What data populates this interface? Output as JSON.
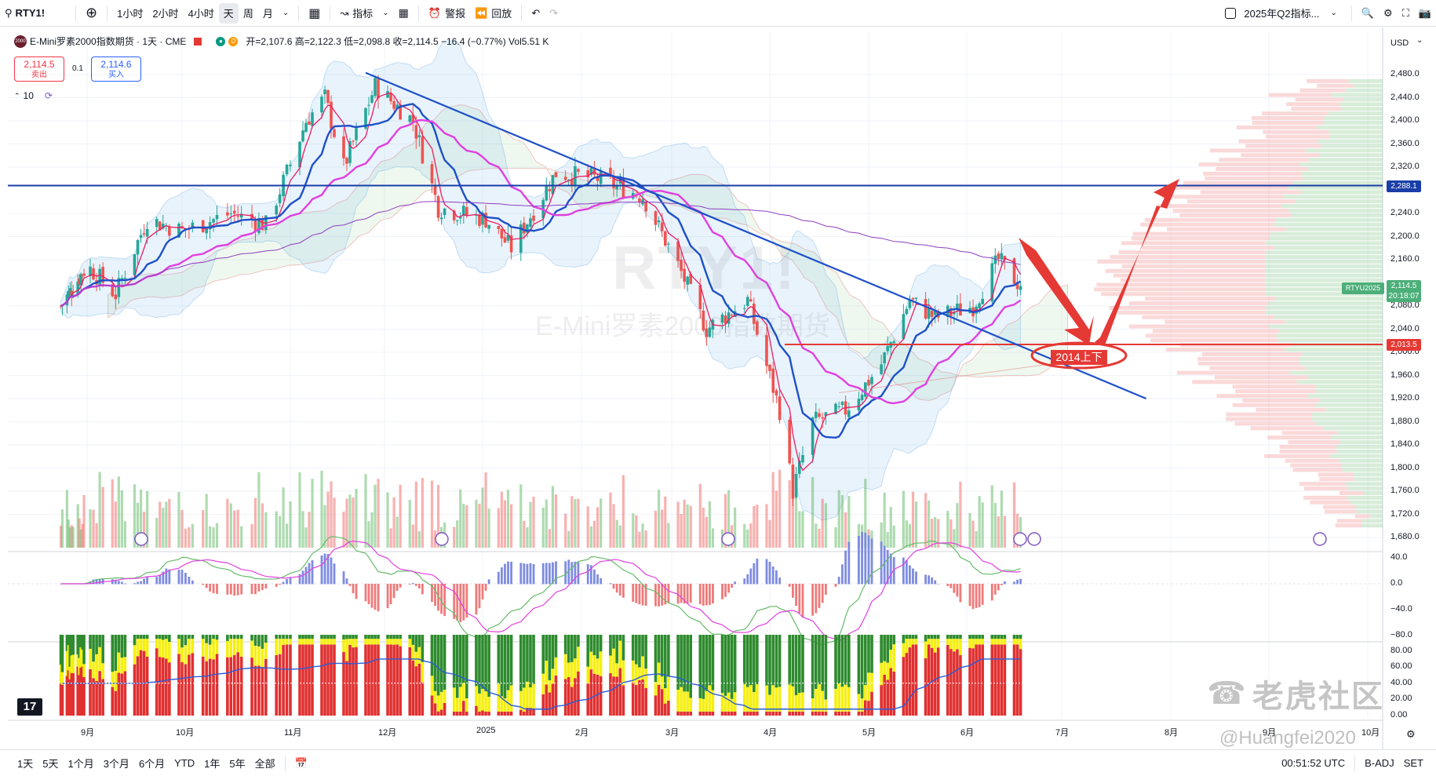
{
  "toolbar": {
    "search_symbol": "RTY1!",
    "intervals": [
      "1小时",
      "2小时",
      "4小时",
      "天",
      "周",
      "月"
    ],
    "active_interval": "天",
    "indicators_label": "指标",
    "alert_label": "警报",
    "replay_label": "回放",
    "layout_name": "2025年Q2指标..."
  },
  "legend": {
    "title": "E-Mini罗素2000指数期货 · 1天 · CME",
    "logo_text": "2000",
    "badge_d": "D",
    "ohlc": "开=2,107.6 高=2,122.3 低=2,098.8 收=2,114.5 −16.4 (−0.77%) Vol5.51 K",
    "sell_price": "2,114.5",
    "sell_label": "卖出",
    "spread": "0.1",
    "buy_price": "2,114.6",
    "buy_label": "买入",
    "indicator_count": "10"
  },
  "watermark": {
    "symbol": "RTY1!",
    "name": "E-Mini罗素2000指数期货"
  },
  "annotation": {
    "label": "2014上下"
  },
  "price_axis": {
    "currency": "USD",
    "ticks": [
      "2,480.0",
      "2,440.0",
      "2,400.0",
      "2,360.0",
      "2,320.0",
      "2,240.0",
      "2,200.0",
      "2,160.0",
      "2,080.0",
      "2,040.0",
      "2,000.0",
      "1,960.0",
      "1,920.0",
      "1,880.0",
      "1,840.0",
      "1,800.0",
      "1,760.0",
      "1,720.0",
      "1,680.0"
    ],
    "tag_resistance": "2,288.1",
    "tag_symbol": "RTYU2025",
    "tag_last": "2,114.5",
    "tag_countdown": "20:18:07",
    "tag_support": "2,013.5"
  },
  "osc_axis": {
    "ticks": [
      "40.0",
      "0.0",
      "−40.0",
      "−80.0"
    ]
  },
  "sent_axis": {
    "ticks": [
      "80.00",
      "60.00",
      "40.00",
      "20.00",
      "0.00"
    ]
  },
  "time_axis": {
    "ticks": [
      "9月",
      "10月",
      "11月",
      "12月",
      "2025",
      "2月",
      "3月",
      "4月",
      "5月",
      "6月",
      "7月",
      "8月",
      "9月",
      "10月"
    ]
  },
  "bottombar": {
    "ranges": [
      "1天",
      "5天",
      "1个月",
      "3个月",
      "6个月",
      "YTD",
      "1年",
      "5年",
      "全部"
    ],
    "clock": "00:51:52 UTC",
    "adj": "B-ADJ",
    "session": "SET"
  },
  "watermark_brand": {
    "community": "老虎社区",
    "handle": "@Huangfei2020"
  },
  "chart_data": {
    "type": "candlestick",
    "title": "E-Mini罗素2000指数期货 · 1天 · CME",
    "y_range": [
      1680,
      2500
    ],
    "last": {
      "open": 2107.6,
      "high": 2122.3,
      "low": 2098.8,
      "close": 2114.5,
      "change": -16.4,
      "change_pct": -0.77,
      "volume": "5.51K"
    },
    "levels": {
      "resistance": 2288.1,
      "support": 2013.5
    },
    "close_path": [
      {
        "x": "2024-08-15",
        "y": 2080
      },
      {
        "x": "2024-09-01",
        "y": 2150
      },
      {
        "x": "2024-09-10",
        "y": 2100
      },
      {
        "x": "2024-09-20",
        "y": 2230
      },
      {
        "x": "2024-10-01",
        "y": 2210
      },
      {
        "x": "2024-10-15",
        "y": 2240
      },
      {
        "x": "2024-10-25",
        "y": 2220
      },
      {
        "x": "2024-11-06",
        "y": 2400
      },
      {
        "x": "2024-11-12",
        "y": 2440
      },
      {
        "x": "2024-11-18",
        "y": 2320
      },
      {
        "x": "2024-11-28",
        "y": 2460
      },
      {
        "x": "2024-12-10",
        "y": 2400
      },
      {
        "x": "2024-12-18",
        "y": 2250
      },
      {
        "x": "2025-01-02",
        "y": 2230
      },
      {
        "x": "2025-01-10",
        "y": 2180
      },
      {
        "x": "2025-01-24",
        "y": 2310
      },
      {
        "x": "2025-02-06",
        "y": 2300
      },
      {
        "x": "2025-02-20",
        "y": 2270
      },
      {
        "x": "2025-03-03",
        "y": 2150
      },
      {
        "x": "2025-03-12",
        "y": 2040
      },
      {
        "x": "2025-03-25",
        "y": 2090
      },
      {
        "x": "2025-04-04",
        "y": 1900
      },
      {
        "x": "2025-04-08",
        "y": 1760
      },
      {
        "x": "2025-04-14",
        "y": 1880
      },
      {
        "x": "2025-04-24",
        "y": 1900
      },
      {
        "x": "2025-05-05",
        "y": 1980
      },
      {
        "x": "2025-05-14",
        "y": 2090
      },
      {
        "x": "2025-05-22",
        "y": 2060
      },
      {
        "x": "2025-06-03",
        "y": 2080
      },
      {
        "x": "2025-06-11",
        "y": 2160
      },
      {
        "x": "2025-06-18",
        "y": 2114.5
      }
    ]
  }
}
